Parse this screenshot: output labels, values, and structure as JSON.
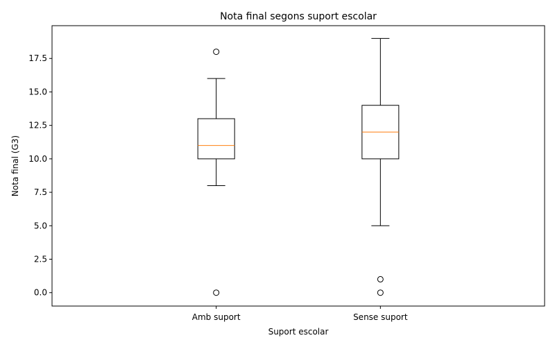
{
  "chart_data": {
    "type": "box",
    "title": "Nota final segons suport escolar",
    "xlabel": "Suport escolar",
    "ylabel": "Nota final (G3)",
    "ylim": [
      -1,
      19.95
    ],
    "yticks": [
      0.0,
      2.5,
      5.0,
      7.5,
      10.0,
      12.5,
      15.0,
      17.5
    ],
    "ytick_labels": [
      "0.0",
      "2.5",
      "5.0",
      "7.5",
      "10.0",
      "12.5",
      "15.0",
      "17.5"
    ],
    "grid": false,
    "colors": {
      "box": "#000000",
      "median": "#ff7f0e",
      "flier": "#000000"
    },
    "categories": [
      "Amb suport",
      "Sense suport"
    ],
    "boxes": [
      {
        "category": "Amb suport",
        "whisker_low": 8,
        "q1": 10,
        "median": 11,
        "q3": 13,
        "whisker_high": 16,
        "fliers": [
          18,
          0
        ]
      },
      {
        "category": "Sense suport",
        "whisker_low": 5,
        "q1": 10,
        "median": 12,
        "q3": 14,
        "whisker_high": 19,
        "fliers": [
          1,
          0
        ]
      }
    ]
  }
}
